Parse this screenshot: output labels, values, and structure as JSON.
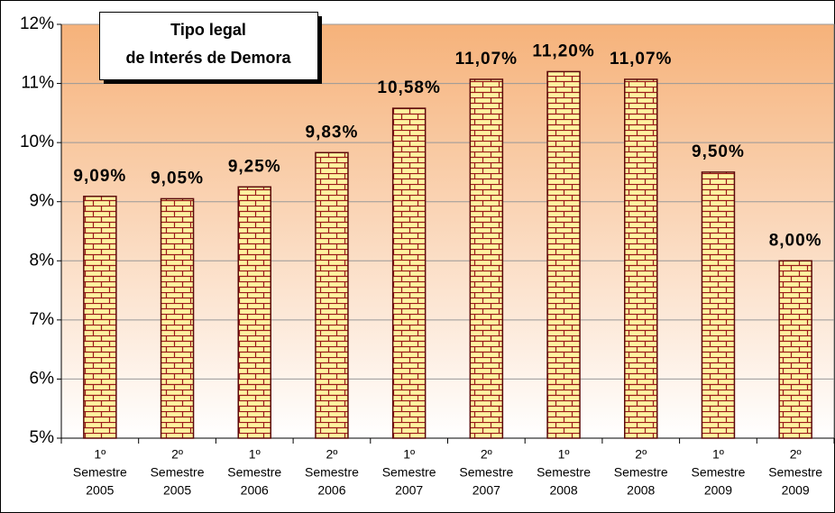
{
  "chart_data": {
    "type": "bar",
    "title": [
      "Tipo legal",
      "de Interés de Demora"
    ],
    "categories": [
      [
        "1º",
        "Semestre",
        "2005"
      ],
      [
        "2º",
        "Semestre",
        "2005"
      ],
      [
        "1º",
        "Semestre",
        "2006"
      ],
      [
        "2º",
        "Semestre",
        "2006"
      ],
      [
        "1º",
        "Semestre",
        "2007"
      ],
      [
        "2º",
        "Semestre",
        "2007"
      ],
      [
        "1º",
        "Semestre",
        "2008"
      ],
      [
        "2º",
        "Semestre",
        "2008"
      ],
      [
        "1º",
        "Semestre",
        "2009"
      ],
      [
        "2º",
        "Semestre",
        "2009"
      ]
    ],
    "values": [
      9.09,
      9.05,
      9.25,
      9.83,
      10.58,
      11.07,
      11.2,
      11.07,
      9.5,
      8.0
    ],
    "value_labels": [
      "9,09%",
      "9,05%",
      "9,25%",
      "9,83%",
      "10,58%",
      "11,07%",
      "11,20%",
      "11,07%",
      "9,50%",
      "8,00%"
    ],
    "color": "#fff3a0",
    "ylim": [
      5,
      12
    ],
    "yticks": [
      {
        "value": 5,
        "label": "5%"
      },
      {
        "value": 6,
        "label": "6%"
      },
      {
        "value": 7,
        "label": "7%"
      },
      {
        "value": 8,
        "label": "8%"
      },
      {
        "value": 9,
        "label": "9%"
      },
      {
        "value": 10,
        "label": "10%"
      },
      {
        "value": 11,
        "label": "11%"
      },
      {
        "value": 12,
        "label": "12%"
      }
    ],
    "grid": true
  }
}
